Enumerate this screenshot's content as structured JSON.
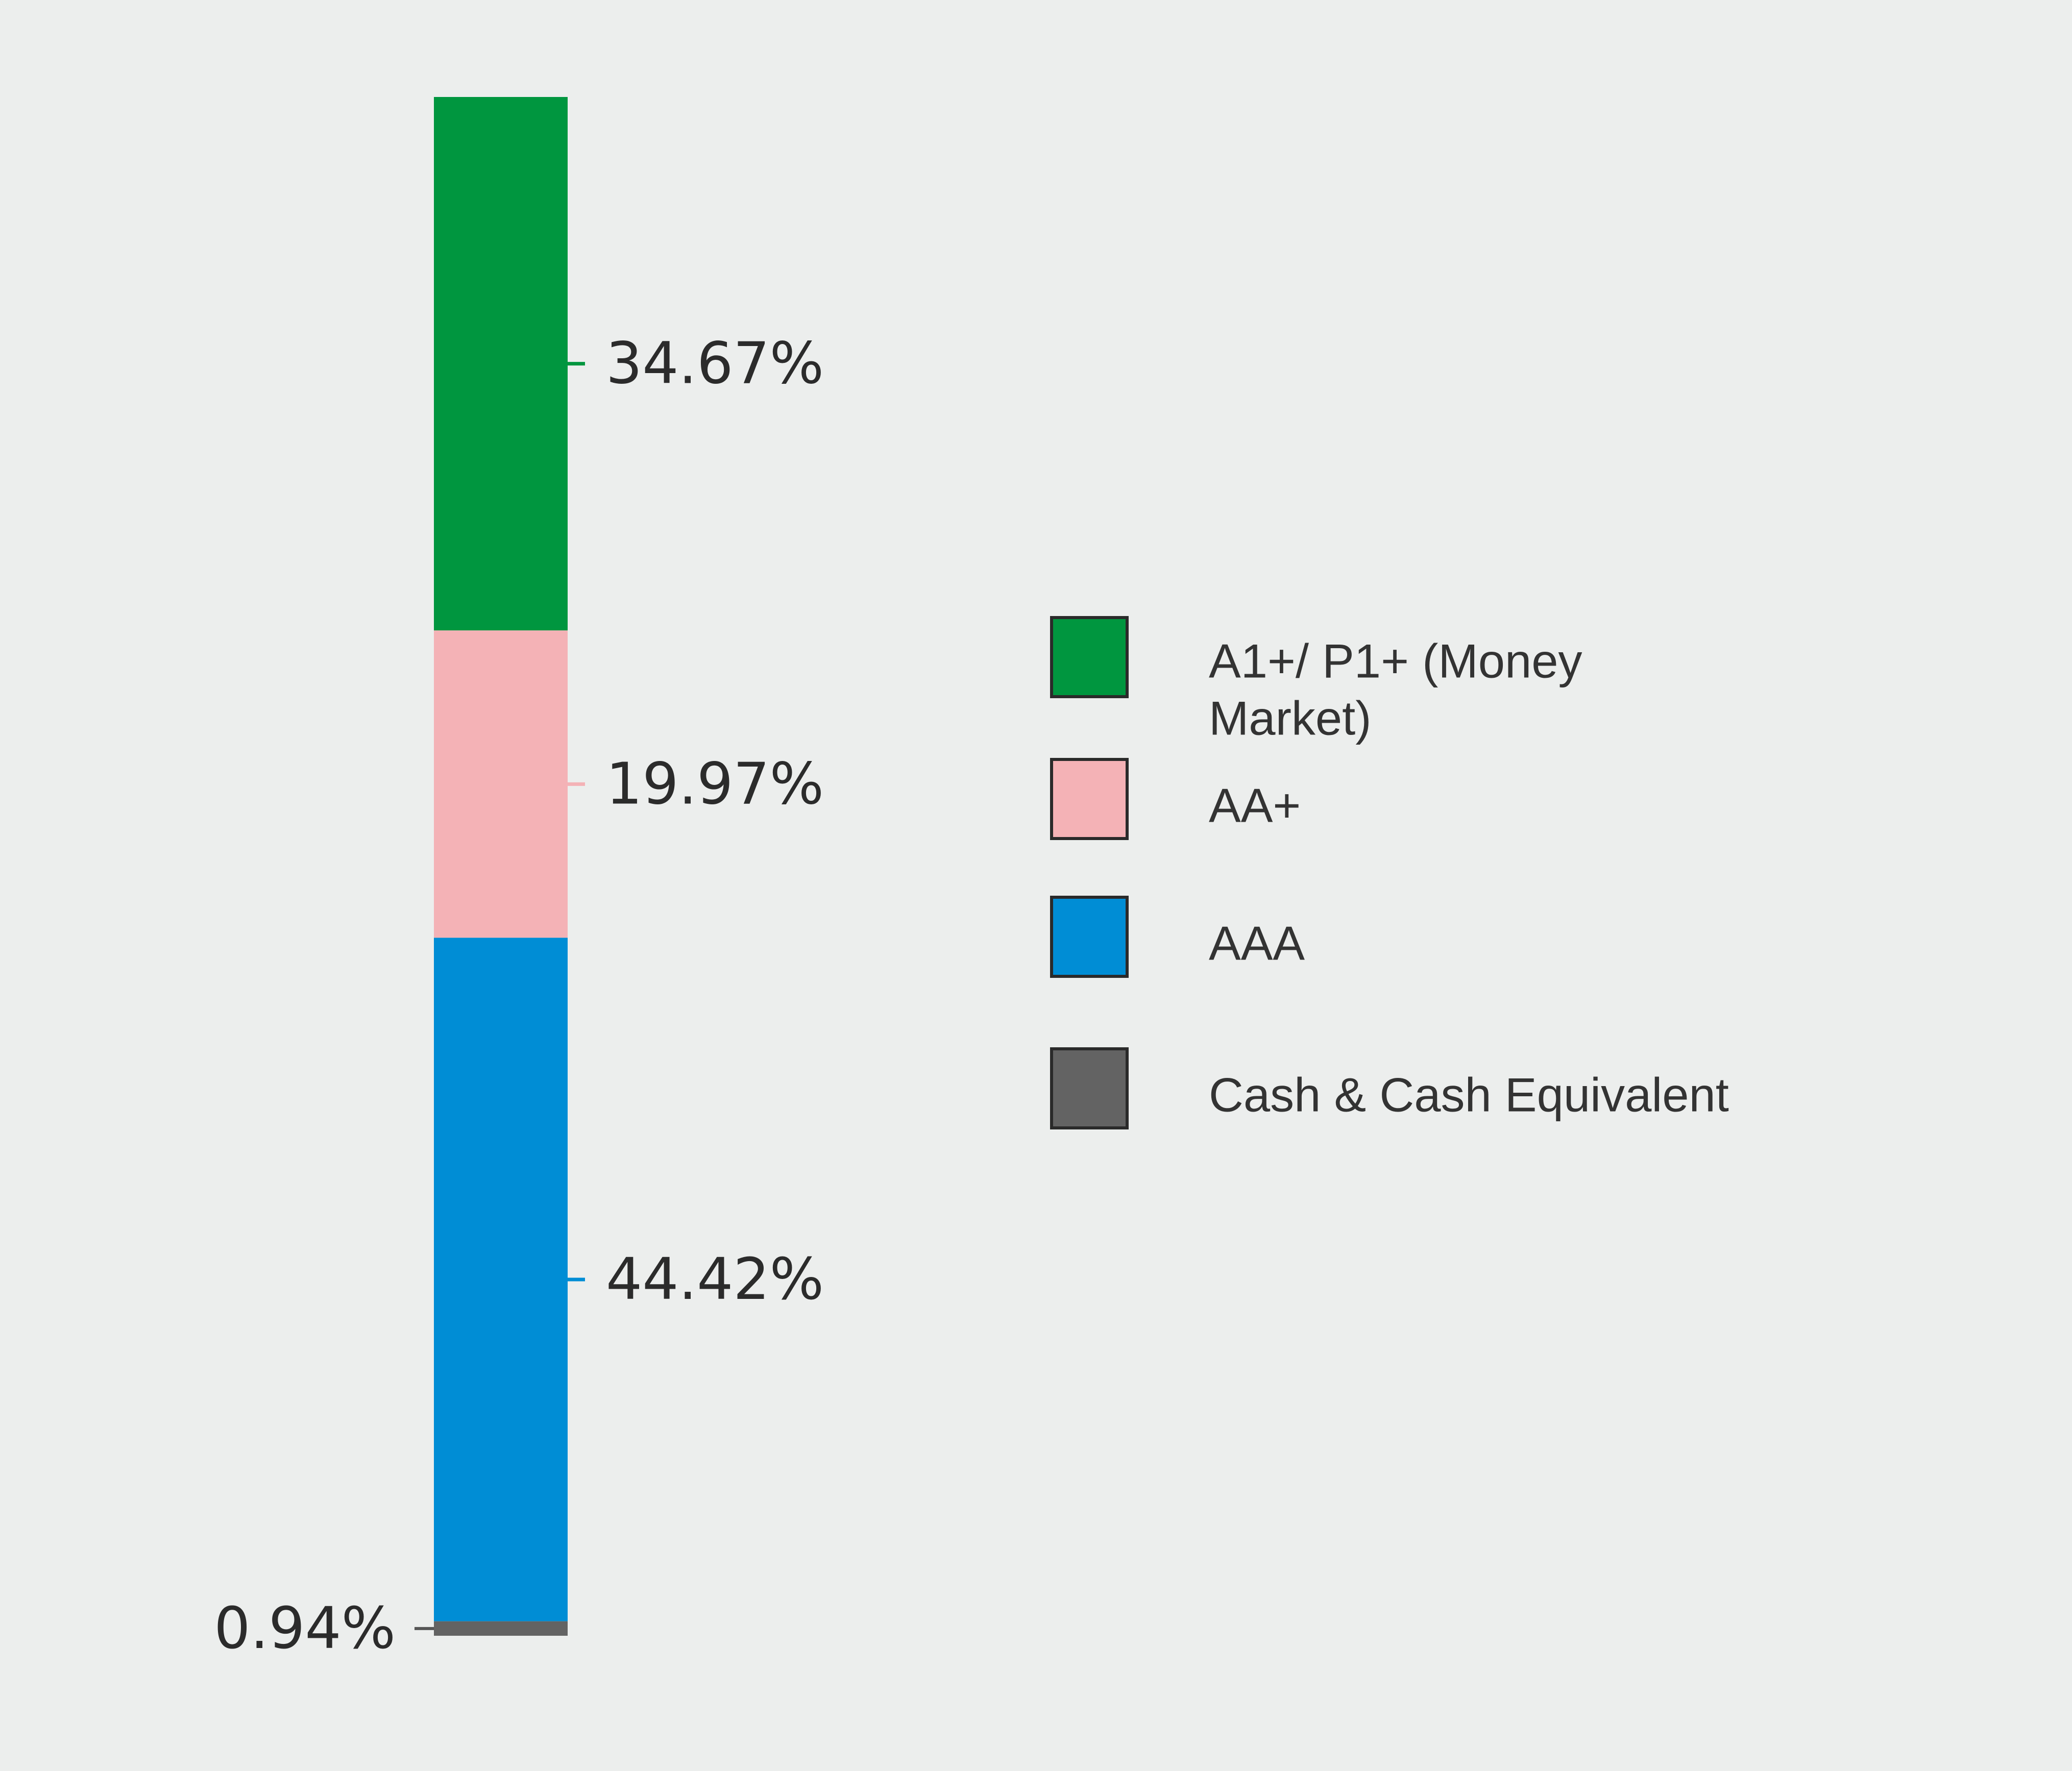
{
  "chart_data": {
    "type": "bar",
    "stacked": true,
    "categories": [
      ""
    ],
    "series": [
      {
        "name": "A1+/ P1+ (Money Market)",
        "legend_lines": [
          "A1+/ P1+ (Money",
          "Market)"
        ],
        "value": 34.67,
        "label": "34.67%",
        "color": "#00963f"
      },
      {
        "name": "AA+",
        "legend_lines": [
          "AA+"
        ],
        "value": 19.97,
        "label": "19.97%",
        "color": "#f4b2b6"
      },
      {
        "name": "AAA",
        "legend_lines": [
          "AAA"
        ],
        "value": 44.42,
        "label": "44.42%",
        "color": "#008dd5"
      },
      {
        "name": "Cash & Cash Equivalent",
        "legend_lines": [
          "Cash & Cash Equivalent"
        ],
        "value": 0.94,
        "label": "0.94%",
        "color": "#636363"
      }
    ],
    "order": "top-to-bottom",
    "title": "",
    "xlabel": "",
    "ylabel": "",
    "grid": false,
    "legend_position": "right"
  }
}
